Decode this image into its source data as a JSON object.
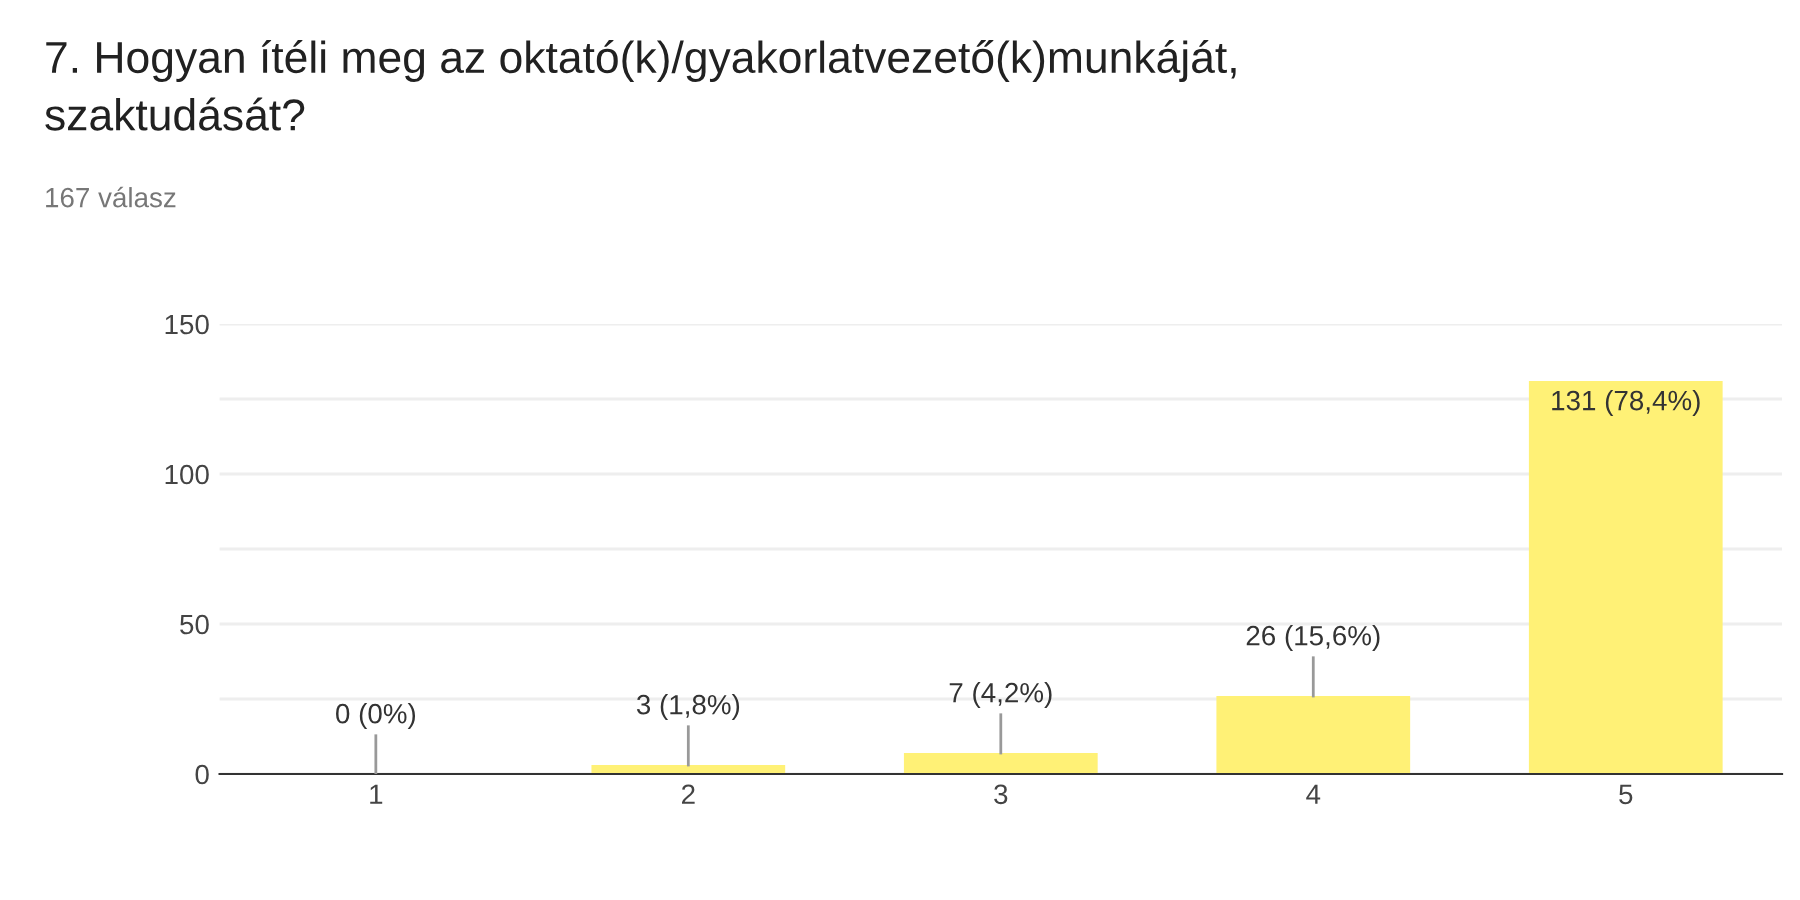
{
  "chart_data": {
    "type": "bar",
    "title": "7. Hogyan ítéli meg az oktató(k)/gyakorlatvezető(k)munkáját,\nszaktudását?",
    "subtitle": "167 válasz",
    "categories": [
      "1",
      "2",
      "3",
      "4",
      "5"
    ],
    "values": [
      0,
      3,
      7,
      26,
      131
    ],
    "value_labels": [
      "0 (0%)",
      "3 (1,8%)",
      "7 (4,2%)",
      "26 (15,6%)",
      "131 (78,4%)"
    ],
    "color": "#fff176",
    "ylim": [
      0,
      150
    ],
    "yticks": [
      0,
      {
        "value": 25,
        "label": null
      },
      50,
      {
        "value": 75,
        "label": null
      },
      100,
      {
        "value": 125,
        "label": null
      },
      150
    ],
    "grid": "y",
    "legend": false
  }
}
